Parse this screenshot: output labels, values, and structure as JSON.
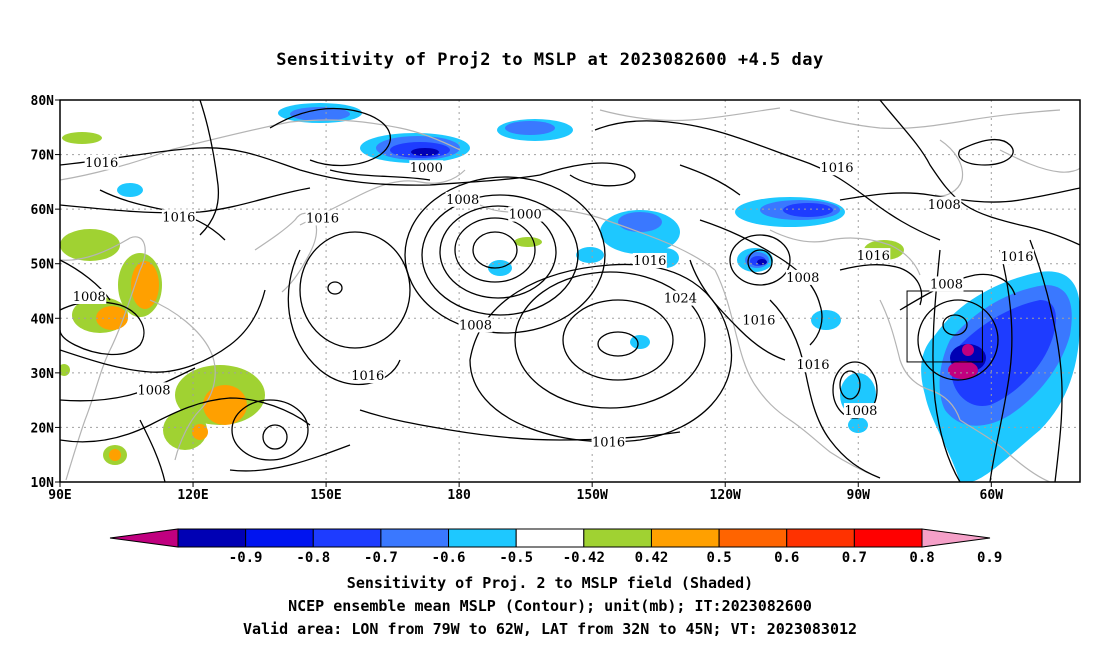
{
  "title": "Sensitivity of Proj2 to MSLP at 2023082600 +4.5 day",
  "map": {
    "lon_labels": [
      "90E",
      "120E",
      "150E",
      "180",
      "150W",
      "120W",
      "90W",
      "60W"
    ],
    "lat_labels": [
      "80N",
      "70N",
      "60N",
      "50N",
      "40N",
      "30N",
      "20N",
      "10N"
    ],
    "valid_area": {
      "lon_min": -79,
      "lon_max": -62,
      "lat_min": 32,
      "lat_max": 45
    },
    "contour_labels": [
      {
        "text": "1016",
        "lon": -94.8,
        "lat": 67.5
      },
      {
        "text": "1000",
        "lon": 172.6,
        "lat": 67.5
      },
      {
        "text": "1016",
        "lon": 99.4,
        "lat": 68.5
      },
      {
        "text": "1008",
        "lon": -179.2,
        "lat": 61.7
      },
      {
        "text": "1008",
        "lon": -70.6,
        "lat": 60.8
      },
      {
        "text": "1016",
        "lon": 116.8,
        "lat": 58.5
      },
      {
        "text": "1016",
        "lon": 149.2,
        "lat": 58.3
      },
      {
        "text": "1000",
        "lon": -165.1,
        "lat": 59.0
      },
      {
        "text": "1016",
        "lon": -54.2,
        "lat": 51.2
      },
      {
        "text": "1016",
        "lon": -86.6,
        "lat": 51.4
      },
      {
        "text": "1016",
        "lon": -137.0,
        "lat": 50.5
      },
      {
        "text": "1008",
        "lon": -102.5,
        "lat": 47.4
      },
      {
        "text": "1008",
        "lon": -70.1,
        "lat": 46.2
      },
      {
        "text": "1008",
        "lon": 96.6,
        "lat": 43.9
      },
      {
        "text": "1024",
        "lon": -130.1,
        "lat": 43.6
      },
      {
        "text": "1016",
        "lon": -112.4,
        "lat": 39.6
      },
      {
        "text": "1008",
        "lon": -176.3,
        "lat": 38.7
      },
      {
        "text": "1016",
        "lon": -100.2,
        "lat": 31.4
      },
      {
        "text": "1016",
        "lon": 159.4,
        "lat": 29.4
      },
      {
        "text": "1008",
        "lon": 111.2,
        "lat": 26.8
      },
      {
        "text": "1008",
        "lon": -89.4,
        "lat": 23.0
      },
      {
        "text": "1016",
        "lon": -146.3,
        "lat": 17.2
      }
    ]
  },
  "colorbar": {
    "labels": [
      "-0.9",
      "-0.8",
      "-0.7",
      "-0.6",
      "-0.5",
      "-0.42",
      "0.42",
      "0.5",
      "0.6",
      "0.7",
      "0.8",
      "0.9"
    ],
    "colors": [
      "#c0007f",
      "#0000b4",
      "#0014f0",
      "#1e3cff",
      "#3a78ff",
      "#1ec8ff",
      "#ffffff",
      "#a0d232",
      "#ffa000",
      "#ff6400",
      "#ff3200",
      "#ff0000",
      "#f5a0c8"
    ]
  },
  "footer": {
    "line1": "Sensitivity of Proj. 2 to MSLP field (Shaded)",
    "line2": "NCEP ensemble mean MSLP (Contour); unit(mb); IT:2023082600",
    "line3": "Valid area: LON from 79W to 62W, LAT from 32N to 45N; VT: 2023083012"
  }
}
